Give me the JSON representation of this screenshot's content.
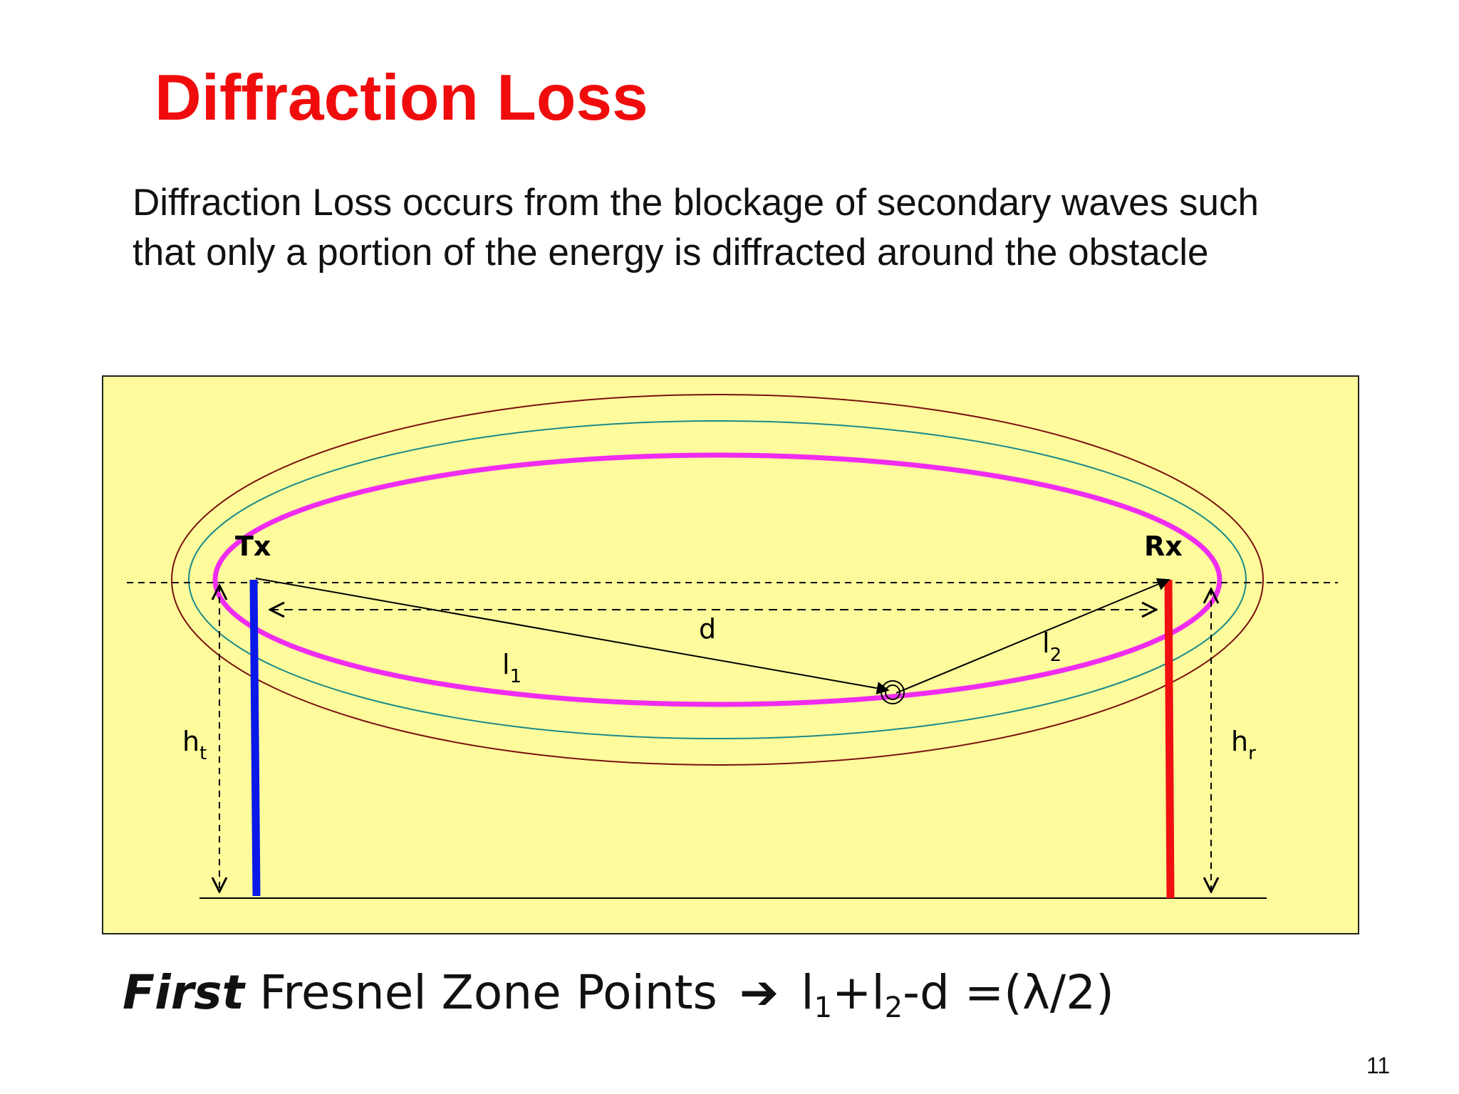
{
  "slide": {
    "title": "Diffraction Loss",
    "description_line1": "Diffraction Loss occurs from the blockage of secondary waves such",
    "description_line2": "that only a portion of the energy is diffracted around the obstacle",
    "page_number": "11"
  },
  "diagram": {
    "background_color": "#fdfb9c",
    "tx_label": "Tx",
    "rx_label": "Rx",
    "d_label": "d",
    "l1_label": "l",
    "l1_sub": "1",
    "l2_label": "l",
    "l2_sub": "2",
    "ht_label": "h",
    "ht_sub": "t",
    "hr_label": "h",
    "hr_sub": "r",
    "colors": {
      "tx_antenna": "#0a18e8",
      "rx_antenna": "#f01010",
      "first_zone": "#f02cf0",
      "second_zone": "#1a8a8a",
      "third_zone": "#7a1010"
    }
  },
  "formula": {
    "first_word": "First",
    "text": "Fresnel Zone Points",
    "arrow": "➔",
    "l1": "l",
    "sub1": "1",
    "plus": "+",
    "l2": "l",
    "sub2": "2",
    "rest": "-d =(λ/2)"
  }
}
